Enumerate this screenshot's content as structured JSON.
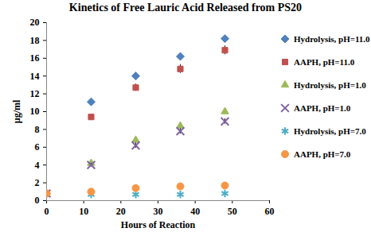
{
  "chart_data": {
    "type": "scatter",
    "title": "Kinetics of Free Lauric Acid Released from PS20",
    "x_label": "Hours of Reaction",
    "y_label": "µg/ml",
    "x": [
      0,
      12,
      24,
      36,
      48
    ],
    "xlim": [
      0,
      60
    ],
    "xticks": [
      0,
      10,
      20,
      30,
      40,
      50,
      60
    ],
    "ylim": [
      0,
      20
    ],
    "yticks": [
      0,
      2,
      4,
      6,
      8,
      10,
      12,
      14,
      16,
      18,
      20
    ],
    "grid": false,
    "legend": "right",
    "series": [
      {
        "name": "Hydrolysis, pH=11.0",
        "color": "#4f81bd",
        "marker": "diamond",
        "values": [
          0.8,
          11.1,
          14.0,
          16.2,
          18.2
        ],
        "errors": [
          0.1,
          0.4,
          0.4,
          0.3,
          0.3
        ]
      },
      {
        "name": "AAPH, pH=11.0",
        "color": "#c0504d",
        "marker": "square",
        "values": [
          0.8,
          9.4,
          12.7,
          14.8,
          16.9
        ],
        "errors": [
          0.1,
          0.3,
          0.4,
          0.5,
          0.5
        ]
      },
      {
        "name": "Hydrolysis, pH=1.0",
        "color": "#9bbb59",
        "marker": "triangle",
        "values": [
          0.8,
          4.2,
          6.8,
          8.4,
          10.0
        ],
        "errors": [
          0.1,
          0.2,
          0.3,
          0.3,
          0.3
        ]
      },
      {
        "name": "AAPH, pH=1.0",
        "color": "#8064a2",
        "marker": "x",
        "values": [
          0.8,
          4.0,
          6.2,
          7.8,
          8.9
        ],
        "errors": [
          0.1,
          0.2,
          0.3,
          0.3,
          0.3
        ]
      },
      {
        "name": "Hydrolysis, pH=7.0",
        "color": "#4bacc6",
        "marker": "star",
        "values": [
          0.8,
          0.7,
          0.7,
          0.7,
          0.8
        ],
        "errors": [
          0.1,
          0.1,
          0.1,
          0.1,
          0.1
        ]
      },
      {
        "name": "AAPH, pH=7.0",
        "color": "#f79646",
        "marker": "circle",
        "values": [
          0.8,
          1.0,
          1.4,
          1.6,
          1.7
        ],
        "errors": [
          0.1,
          0.1,
          0.1,
          0.1,
          0.1
        ]
      }
    ]
  }
}
